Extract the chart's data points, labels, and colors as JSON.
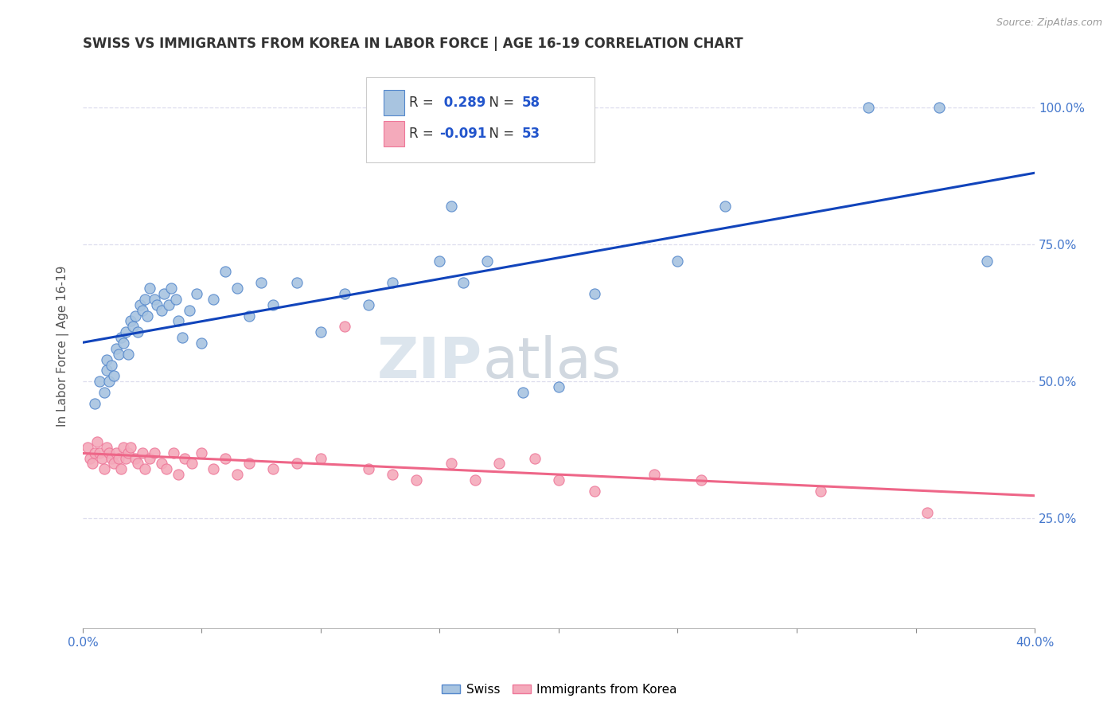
{
  "title": "SWISS VS IMMIGRANTS FROM KOREA IN LABOR FORCE | AGE 16-19 CORRELATION CHART",
  "source": "Source: ZipAtlas.com",
  "ylabel": "In Labor Force | Age 16-19",
  "legend_label1": "Swiss",
  "legend_label2": "Immigrants from Korea",
  "r1": "0.289",
  "n1": "58",
  "r2": "-0.091",
  "n2": "53",
  "blue_dot_color": "#A8C4E0",
  "pink_dot_color": "#F4AABB",
  "blue_edge_color": "#5588CC",
  "pink_edge_color": "#EE7799",
  "blue_line_color": "#1144BB",
  "pink_line_color": "#EE6688",
  "right_ytick_vals": [
    0.25,
    0.5,
    0.75,
    1.0
  ],
  "right_yticklabels": [
    "25.0%",
    "50.0%",
    "75.0%",
    "100.0%"
  ],
  "xmin": 0.0,
  "xmax": 0.4,
  "ymin": 0.05,
  "ymax": 1.08,
  "swiss_x": [
    0.005,
    0.007,
    0.009,
    0.01,
    0.01,
    0.011,
    0.012,
    0.013,
    0.014,
    0.015,
    0.016,
    0.017,
    0.018,
    0.019,
    0.02,
    0.021,
    0.022,
    0.023,
    0.024,
    0.025,
    0.026,
    0.027,
    0.028,
    0.03,
    0.031,
    0.033,
    0.034,
    0.036,
    0.037,
    0.039,
    0.04,
    0.042,
    0.045,
    0.048,
    0.05,
    0.055,
    0.06,
    0.065,
    0.07,
    0.075,
    0.08,
    0.09,
    0.1,
    0.11,
    0.12,
    0.13,
    0.15,
    0.155,
    0.16,
    0.17,
    0.185,
    0.2,
    0.215,
    0.25,
    0.27,
    0.33,
    0.36,
    0.38
  ],
  "swiss_y": [
    0.46,
    0.5,
    0.48,
    0.52,
    0.54,
    0.5,
    0.53,
    0.51,
    0.56,
    0.55,
    0.58,
    0.57,
    0.59,
    0.55,
    0.61,
    0.6,
    0.62,
    0.59,
    0.64,
    0.63,
    0.65,
    0.62,
    0.67,
    0.65,
    0.64,
    0.63,
    0.66,
    0.64,
    0.67,
    0.65,
    0.61,
    0.58,
    0.63,
    0.66,
    0.57,
    0.65,
    0.7,
    0.67,
    0.62,
    0.68,
    0.64,
    0.68,
    0.59,
    0.66,
    0.64,
    0.68,
    0.72,
    0.82,
    0.68,
    0.72,
    0.48,
    0.49,
    0.66,
    0.72,
    0.82,
    1.0,
    1.0,
    0.72
  ],
  "korea_x": [
    0.002,
    0.003,
    0.004,
    0.005,
    0.006,
    0.007,
    0.008,
    0.009,
    0.01,
    0.011,
    0.012,
    0.013,
    0.014,
    0.015,
    0.016,
    0.017,
    0.018,
    0.019,
    0.02,
    0.022,
    0.023,
    0.025,
    0.026,
    0.028,
    0.03,
    0.033,
    0.035,
    0.038,
    0.04,
    0.043,
    0.046,
    0.05,
    0.055,
    0.06,
    0.065,
    0.07,
    0.08,
    0.09,
    0.1,
    0.11,
    0.12,
    0.13,
    0.14,
    0.155,
    0.165,
    0.175,
    0.19,
    0.2,
    0.215,
    0.24,
    0.26,
    0.31,
    0.355
  ],
  "korea_y": [
    0.38,
    0.36,
    0.35,
    0.37,
    0.39,
    0.37,
    0.36,
    0.34,
    0.38,
    0.37,
    0.36,
    0.35,
    0.37,
    0.36,
    0.34,
    0.38,
    0.36,
    0.37,
    0.38,
    0.36,
    0.35,
    0.37,
    0.34,
    0.36,
    0.37,
    0.35,
    0.34,
    0.37,
    0.33,
    0.36,
    0.35,
    0.37,
    0.34,
    0.36,
    0.33,
    0.35,
    0.34,
    0.35,
    0.36,
    0.6,
    0.34,
    0.33,
    0.32,
    0.35,
    0.32,
    0.35,
    0.36,
    0.32,
    0.3,
    0.33,
    0.32,
    0.3,
    0.26
  ],
  "watermark_zip": "ZIP",
  "watermark_atlas": "atlas",
  "background_color": "#FFFFFF",
  "grid_color": "#DDDDEE"
}
